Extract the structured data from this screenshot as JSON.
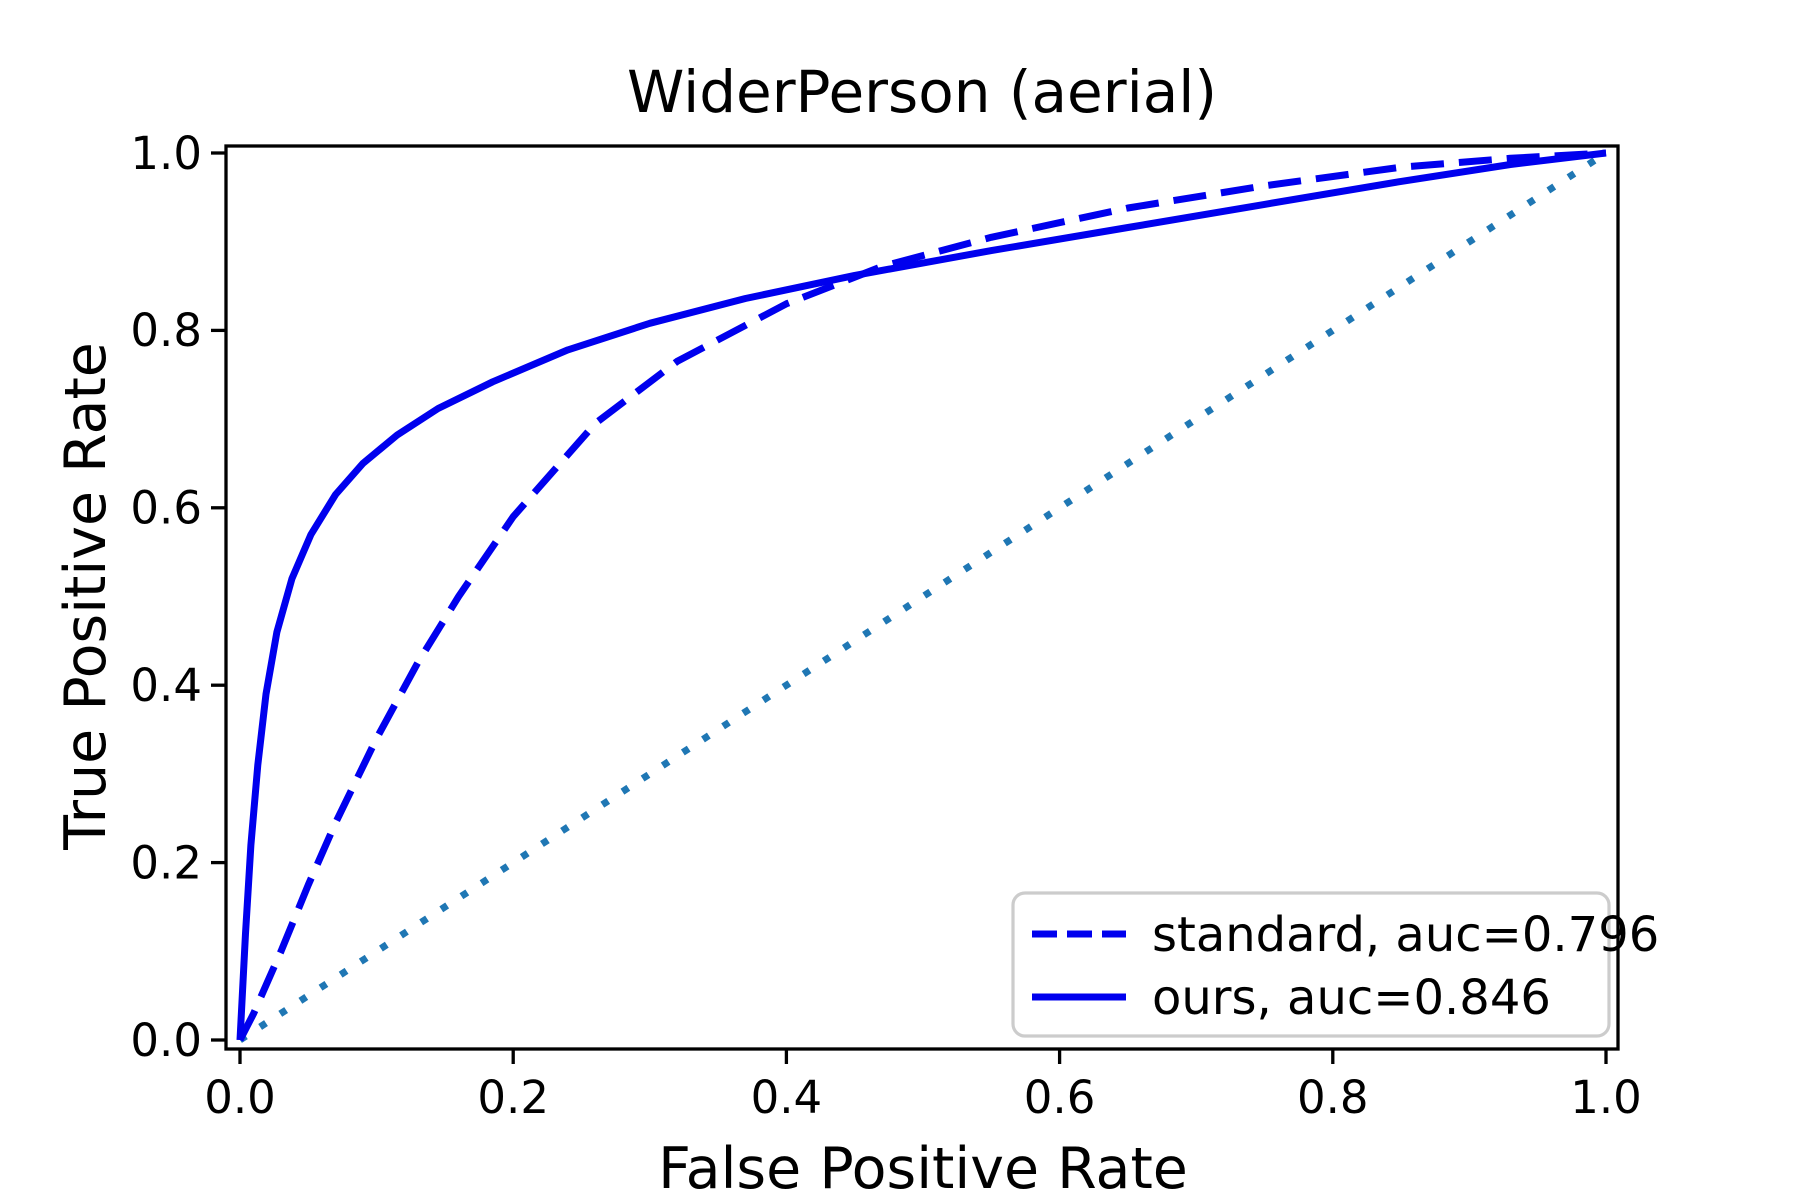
{
  "chart_data": {
    "type": "line",
    "title": "WiderPerson (aerial)",
    "xlabel": "False Positive Rate",
    "ylabel": "True Positive Rate",
    "xlim": [
      -0.01,
      1.01
    ],
    "ylim": [
      -0.01,
      1.01
    ],
    "grid": false,
    "xticks": {
      "values": [
        0,
        0.2,
        0.4,
        0.6,
        0.8,
        1.0
      ],
      "labels": [
        "0.0",
        "0.2",
        "0.4",
        "0.6",
        "0.8",
        "1.0"
      ]
    },
    "yticks": {
      "values": [
        0,
        0.2,
        0.4,
        0.6,
        0.8,
        1.0
      ],
      "labels": [
        "0.0",
        "0.2",
        "0.4",
        "0.6",
        "0.8",
        "1.0"
      ]
    },
    "colors": {
      "curve_blue": "#0000ee",
      "chance_blue": "#1f77b4",
      "axis_black": "#000000",
      "legend_border": "#cccccc"
    },
    "legend": {
      "position": "lower right"
    },
    "series": [
      {
        "name": "chance",
        "legend_label": null,
        "line_style": "dotted",
        "color": "#1f77b4",
        "x": [
          0,
          1
        ],
        "y": [
          0,
          1
        ]
      },
      {
        "name": "standard",
        "legend_label": "standard, auc=0.796",
        "auc": 0.796,
        "line_style": "dashed",
        "color": "#0000ee",
        "x": [
          0,
          0.01,
          0.02,
          0.03,
          0.05,
          0.07,
          0.1,
          0.13,
          0.16,
          0.2,
          0.26,
          0.32,
          0.4,
          0.47,
          0.55,
          0.65,
          0.75,
          0.85,
          0.93,
          1.0
        ],
        "y": [
          0,
          0.03,
          0.065,
          0.1,
          0.175,
          0.245,
          0.34,
          0.425,
          0.5,
          0.59,
          0.695,
          0.765,
          0.83,
          0.872,
          0.905,
          0.938,
          0.963,
          0.984,
          0.994,
          1.0
        ]
      },
      {
        "name": "ours",
        "legend_label": "ours, auc=0.846",
        "auc": 0.846,
        "line_style": "solid",
        "color": "#0000ee",
        "x": [
          0,
          0.004,
          0.008,
          0.013,
          0.019,
          0.027,
          0.038,
          0.052,
          0.07,
          0.09,
          0.115,
          0.145,
          0.185,
          0.24,
          0.3,
          0.37,
          0.45,
          0.55,
          0.65,
          0.75,
          0.85,
          0.93,
          1.0
        ],
        "y": [
          0,
          0.12,
          0.22,
          0.31,
          0.39,
          0.46,
          0.52,
          0.57,
          0.615,
          0.65,
          0.682,
          0.712,
          0.742,
          0.778,
          0.808,
          0.836,
          0.862,
          0.89,
          0.916,
          0.942,
          0.968,
          0.987,
          1.0
        ]
      }
    ]
  }
}
